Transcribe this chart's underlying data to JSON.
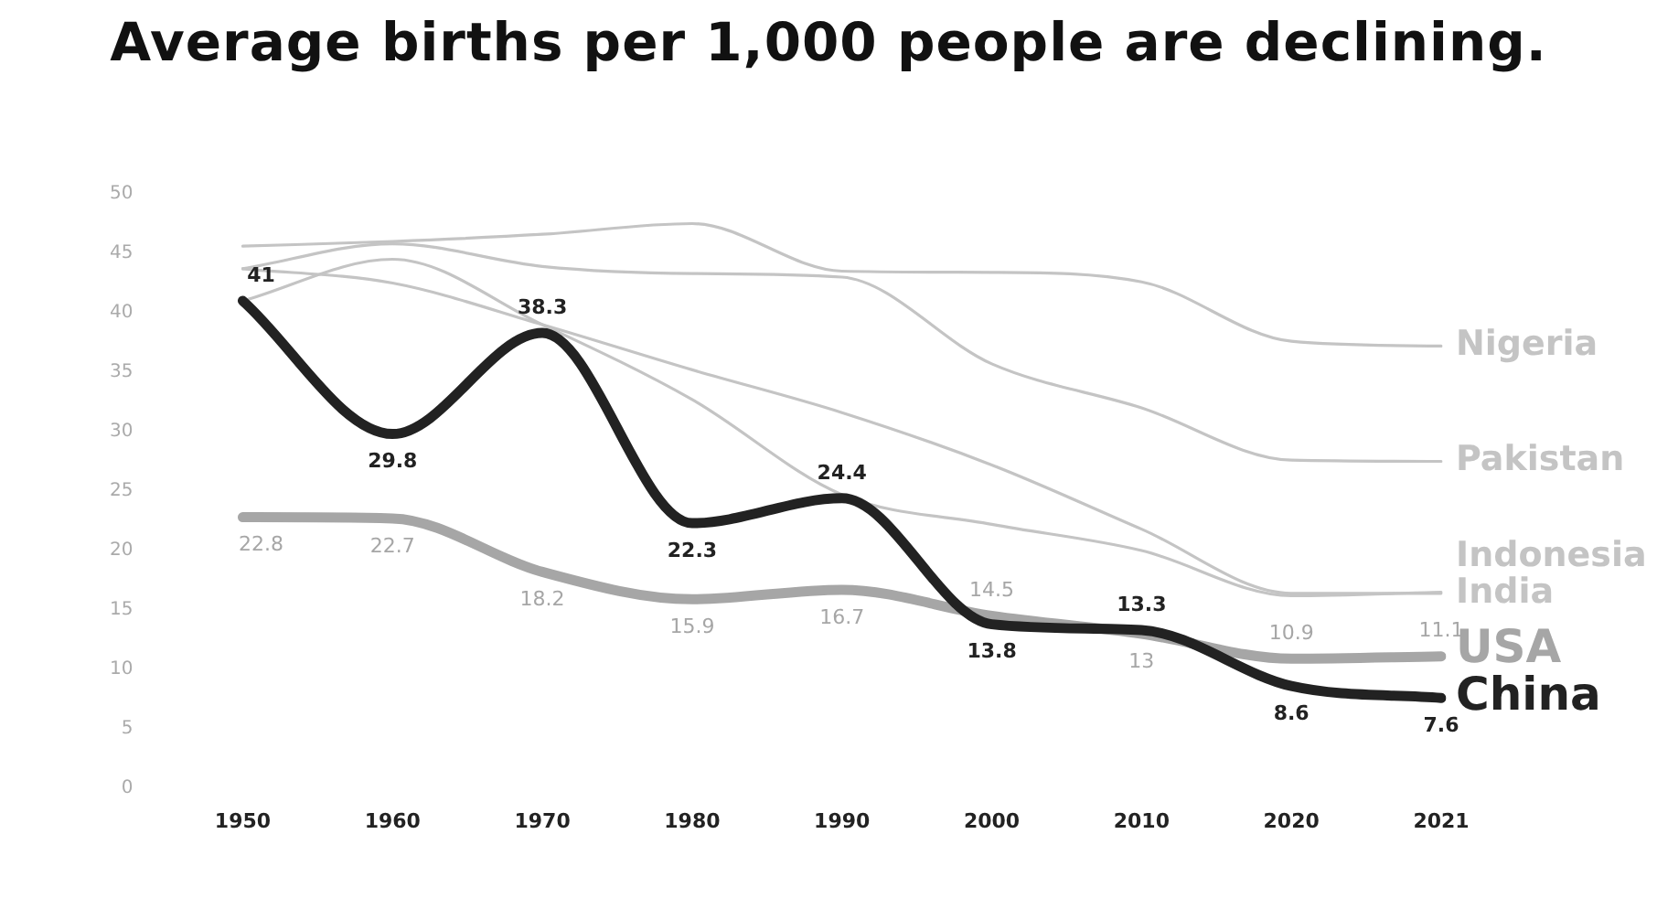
{
  "chart_data": {
    "type": "line",
    "title": "Average births per 1,000 people are declining.",
    "categories": [
      "1950",
      "1960",
      "1970",
      "1980",
      "1990",
      "2000",
      "2010",
      "2020",
      "2021"
    ],
    "ylim": [
      0,
      50
    ],
    "yticks": [
      0,
      5,
      10,
      15,
      20,
      25,
      30,
      35,
      40,
      45,
      50
    ],
    "grid": false,
    "legend": false,
    "marker": "none",
    "line_style": "solid",
    "series": [
      {
        "name": "Nigeria",
        "color": "#c4c4c4",
        "values": [
          45.6,
          46,
          46.6,
          47.5,
          43.5,
          43.4,
          42.6,
          37.6,
          37.2
        ]
      },
      {
        "name": "Pakistan",
        "color": "#c4c4c4",
        "values": [
          43.7,
          45.8,
          43.9,
          43.3,
          43,
          35.7,
          32,
          27.6,
          27.5
        ]
      },
      {
        "name": "Indonesia",
        "color": "#c4c4c4",
        "values": [
          41,
          44.5,
          39,
          32.7,
          24.7,
          22.2,
          20,
          16.2,
          16.5
        ]
      },
      {
        "name": "India",
        "color": "#c4c4c4",
        "values": [
          43.7,
          42.5,
          39,
          35.2,
          31.6,
          27.2,
          21.8,
          16.4,
          16.4
        ]
      },
      {
        "name": "USA",
        "color": "#a6a6a6",
        "values": [
          22.8,
          22.7,
          18.2,
          15.9,
          16.7,
          14.5,
          13,
          10.9,
          11.1
        ],
        "value_labels": [
          "22.8",
          "22.7",
          "18.2",
          "15.9",
          "16.7",
          "14.5",
          "13",
          "10.9",
          "11.1"
        ]
      },
      {
        "name": "China",
        "color": "#222222",
        "values": [
          41,
          29.8,
          38.3,
          22.3,
          24.4,
          13.8,
          13.3,
          8.6,
          7.6
        ],
        "value_labels": [
          "41",
          "29.8",
          "38.3",
          "22.3",
          "24.4",
          "13.8",
          "13.3",
          "8.6",
          "7.6"
        ]
      }
    ]
  }
}
